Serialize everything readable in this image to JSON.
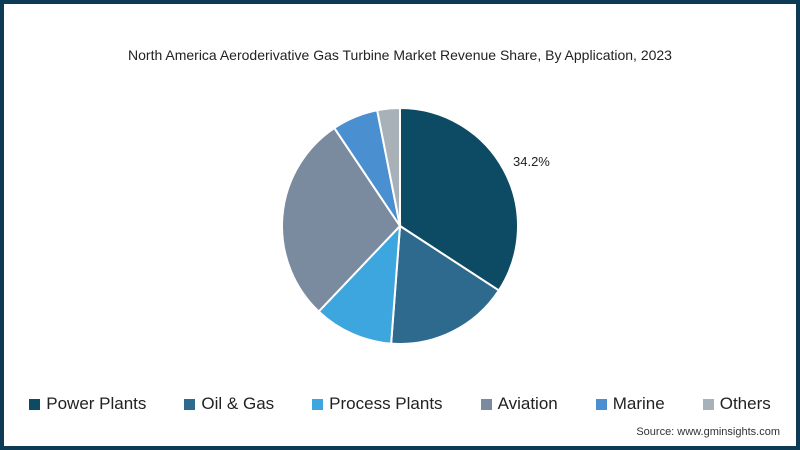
{
  "chart_data": {
    "type": "pie",
    "title": "North America Aeroderivative Gas Turbine Market Revenue Share, By Application, 2023",
    "categories": [
      "Power Plants",
      "Oil & Gas",
      "Process Plants",
      "Aviation",
      "Marine",
      "Others"
    ],
    "values": [
      34.2,
      17.0,
      10.9,
      28.5,
      6.3,
      3.1
    ],
    "colors": [
      "#0d4a63",
      "#2e6a8e",
      "#3ea6de",
      "#7a8ba0",
      "#4a8fd0",
      "#a9b1b8"
    ],
    "annotations": [
      {
        "category": "Power Plants",
        "label": "34.2%"
      }
    ],
    "legend_position": "bottom",
    "start_angle_deg": 0,
    "direction": "clockwise"
  },
  "title": "North America Aeroderivative Gas Turbine Market Revenue Share, By Application, 2023",
  "data_label": "34.2%",
  "legend": [
    {
      "label": "Power Plants",
      "color": "#0d4a63"
    },
    {
      "label": "Oil & Gas",
      "color": "#2e6a8e"
    },
    {
      "label": "Process Plants",
      "color": "#3ea6de"
    },
    {
      "label": "Aviation",
      "color": "#7a8ba0"
    },
    {
      "label": "Marine",
      "color": "#4a8fd0"
    },
    {
      "label": "Others",
      "color": "#a9b1b8"
    }
  ],
  "source": "Source: www.gminsights.com",
  "frame_color": "#0d3b55"
}
